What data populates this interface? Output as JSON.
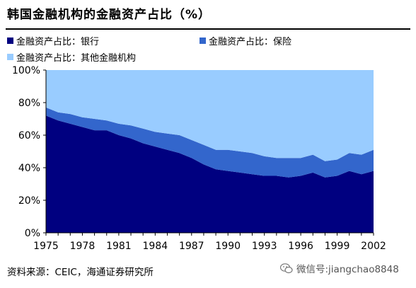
{
  "title": "韩国金融机构的金融资产占比（%）",
  "source": "资料来源：CEIC，海通证券研究所",
  "watermark": "微信号:jiangchao8848",
  "watermark_icon": "wechat-icon",
  "colors": {
    "bank": "#000080",
    "insurance": "#3366cc",
    "other": "#99ccff"
  },
  "chart_data": {
    "type": "area",
    "stacked": true,
    "x": [
      1975,
      1976,
      1977,
      1978,
      1979,
      1980,
      1981,
      1982,
      1983,
      1984,
      1985,
      1986,
      1987,
      1988,
      1989,
      1990,
      1991,
      1992,
      1993,
      1994,
      1995,
      1996,
      1997,
      1998,
      1999,
      2000,
      2001,
      2002
    ],
    "series": [
      {
        "name": "金融资产占比：银行",
        "color": "#000080",
        "values": [
          72,
          69,
          67,
          65,
          63,
          63,
          60,
          58,
          55,
          53,
          51,
          49,
          46,
          42,
          39,
          38,
          37,
          36,
          35,
          35,
          34,
          35,
          37,
          34,
          35,
          38,
          36,
          38
        ]
      },
      {
        "name": "金融资产占比：保险",
        "color": "#3366cc",
        "values": [
          5,
          5,
          6,
          6,
          7,
          6,
          7,
          8,
          9,
          9,
          10,
          11,
          11,
          12,
          12,
          13,
          13,
          13,
          12,
          11,
          12,
          11,
          11,
          10,
          10,
          11,
          12,
          13
        ]
      },
      {
        "name": "金融资产占比：其他金融机构",
        "color": "#99ccff",
        "values": [
          23,
          26,
          27,
          29,
          30,
          31,
          33,
          34,
          36,
          38,
          39,
          40,
          43,
          46,
          49,
          49,
          50,
          51,
          53,
          54,
          54,
          54,
          52,
          56,
          55,
          51,
          52,
          49
        ]
      }
    ],
    "xticks": [
      1975,
      1978,
      1981,
      1984,
      1987,
      1990,
      1993,
      1996,
      1999,
      2002
    ],
    "yticks": [
      0,
      20,
      40,
      60,
      80,
      100
    ],
    "ytick_labels": [
      "0%",
      "20%",
      "40%",
      "60%",
      "80%",
      "100%"
    ],
    "ylim": [
      0,
      100
    ],
    "grid": false,
    "legend_position": "top"
  }
}
